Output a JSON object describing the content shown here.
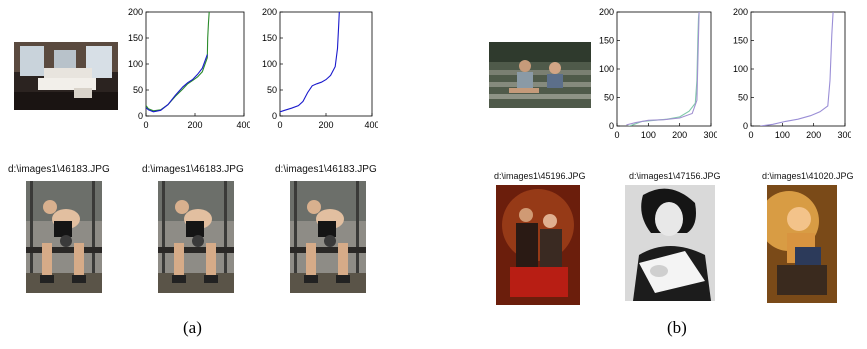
{
  "figure": {
    "label_a": "(a)",
    "label_b": "(b)"
  },
  "panel_a": {
    "captions": [
      "d:\\images1\\46183.JPG",
      "d:\\images1\\46183.JPG",
      "d:\\images1\\46183.JPG"
    ]
  },
  "panel_b": {
    "captions": [
      "d:\\images1\\45196.JPG",
      "d:\\images1\\47156.JPG",
      "d:\\images1\\41020.JPG"
    ]
  },
  "chart_data": [
    {
      "id": "a1",
      "type": "line",
      "xlim": [
        0,
        400
      ],
      "ylim": [
        0,
        200
      ],
      "xticks": [
        0,
        200,
        400
      ],
      "yticks": [
        0,
        50,
        100,
        150,
        200
      ],
      "series": [
        {
          "color": "#2a8a2a",
          "x": [
            0,
            10,
            30,
            60,
            90,
            120,
            150,
            170,
            190,
            210,
            230,
            250,
            252,
            255,
            258,
            260
          ],
          "y": [
            20,
            14,
            10,
            12,
            22,
            38,
            52,
            62,
            68,
            75,
            85,
            112,
            150,
            180,
            200,
            200
          ]
        },
        {
          "color": "#1a1acc",
          "x": [
            0,
            10,
            30,
            60,
            90,
            120,
            150,
            170,
            190,
            210,
            230,
            250
          ],
          "y": [
            16,
            12,
            8,
            11,
            22,
            40,
            56,
            64,
            70,
            80,
            92,
            118
          ]
        }
      ]
    },
    {
      "id": "a2",
      "type": "line",
      "xlim": [
        0,
        400
      ],
      "ylim": [
        0,
        200
      ],
      "xticks": [
        0,
        200,
        400
      ],
      "yticks": [
        0,
        50,
        100,
        150,
        200
      ],
      "series": [
        {
          "color": "#1a1acc",
          "x": [
            0,
            20,
            50,
            80,
            100,
            120,
            140,
            160,
            180,
            200,
            220,
            240,
            250,
            255,
            258
          ],
          "y": [
            8,
            11,
            15,
            20,
            28,
            45,
            58,
            62,
            65,
            70,
            78,
            95,
            130,
            175,
            200
          ]
        }
      ]
    },
    {
      "id": "b1",
      "type": "line",
      "xlim": [
        0,
        300
      ],
      "ylim": [
        0,
        200
      ],
      "xticks": [
        0,
        100,
        200,
        300
      ],
      "yticks": [
        0,
        50,
        100,
        150,
        200
      ],
      "series": [
        {
          "color": "#7fc8a9",
          "x": [
            30,
            50,
            80,
            120,
            160,
            200,
            230,
            250,
            255,
            258,
            260,
            262
          ],
          "y": [
            -2,
            2,
            8,
            10,
            12,
            16,
            26,
            40,
            80,
            150,
            190,
            200
          ]
        },
        {
          "color": "#a090d0",
          "x": [
            30,
            60,
            100,
            150,
            200,
            240,
            255,
            262
          ],
          "y": [
            2,
            6,
            10,
            11,
            14,
            22,
            45,
            200
          ]
        }
      ]
    },
    {
      "id": "b2",
      "type": "line",
      "xlim": [
        0,
        300
      ],
      "ylim": [
        0,
        200
      ],
      "xticks": [
        0,
        100,
        200,
        300
      ],
      "yticks": [
        0,
        50,
        100,
        150,
        200
      ],
      "series": [
        {
          "color": "#9a8ed6",
          "x": [
            30,
            70,
            110,
            150,
            190,
            220,
            245,
            252,
            258,
            262
          ],
          "y": [
            0,
            3,
            8,
            12,
            18,
            25,
            35,
            80,
            160,
            200
          ]
        }
      ]
    }
  ]
}
